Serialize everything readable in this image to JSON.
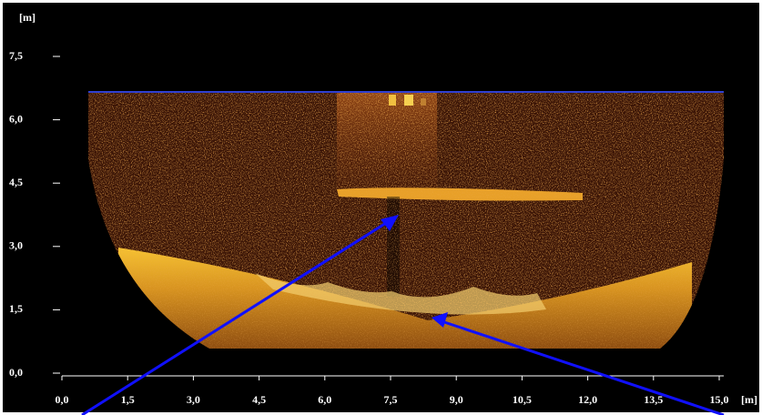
{
  "chart_data": {
    "type": "sonar",
    "x_label": "[m]",
    "y_label": "[m]",
    "xlim": [
      0,
      15
    ],
    "ylim": [
      0,
      7.5
    ],
    "xticks": [
      {
        "value": 0,
        "label": "0,0"
      },
      {
        "value": 1.5,
        "label": "1,5"
      },
      {
        "value": 3,
        "label": "3,0"
      },
      {
        "value": 4.5,
        "label": "4,5"
      },
      {
        "value": 6,
        "label": "6,0"
      },
      {
        "value": 7.5,
        "label": "7,5"
      },
      {
        "value": 9,
        "label": "9,0"
      },
      {
        "value": 10.5,
        "label": "10,5"
      },
      {
        "value": 12,
        "label": "12,0"
      },
      {
        "value": 13.5,
        "label": "13,5"
      },
      {
        "value": 15,
        "label": "15,0"
      }
    ],
    "yticks": [
      {
        "value": 0,
        "label": "0,0"
      },
      {
        "value": 1.5,
        "label": "1,5"
      },
      {
        "value": 3,
        "label": "3,0"
      },
      {
        "value": 4.5,
        "label": "4,5"
      },
      {
        "value": 6,
        "label": "6,0"
      },
      {
        "value": 7.5,
        "label": "7,5"
      }
    ]
  }
}
